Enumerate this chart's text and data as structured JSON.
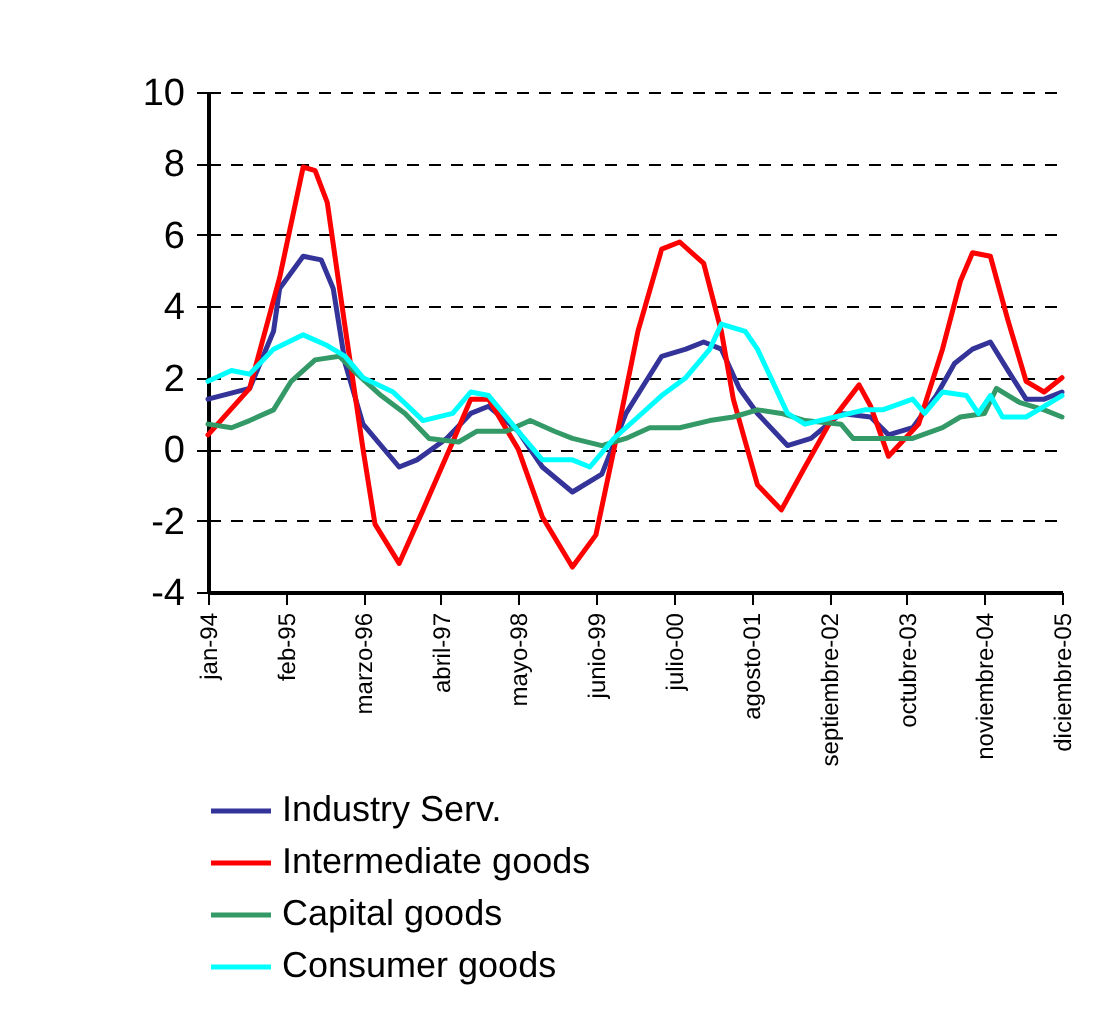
{
  "chart_data": {
    "type": "line",
    "xlim": [
      "1994-01",
      "2005-12"
    ],
    "ylim": [
      -4,
      10
    ],
    "yticks": [
      -4,
      -2,
      0,
      2,
      4,
      6,
      8,
      10
    ],
    "xticks": [
      {
        "value": "1994-01",
        "label": "jan-94"
      },
      {
        "value": "1995-02",
        "label": "feb-95"
      },
      {
        "value": "1996-03",
        "label": "marzo-96"
      },
      {
        "value": "1997-04",
        "label": "abril-97"
      },
      {
        "value": "1998-05",
        "label": "mayo-98"
      },
      {
        "value": "1999-06",
        "label": "junio-99"
      },
      {
        "value": "2000-07",
        "label": "julio-00"
      },
      {
        "value": "2001-08",
        "label": "agosto-01"
      },
      {
        "value": "2002-09",
        "label": "septiembre-02"
      },
      {
        "value": "2003-10",
        "label": "octubre-03"
      },
      {
        "value": "2004-11",
        "label": "noviembre-04"
      },
      {
        "value": "2005-12",
        "label": "diciembre-05"
      }
    ],
    "grid": "y",
    "legend": "bottom",
    "line_style": "solid",
    "marker": "none",
    "series": [
      {
        "name": "Industry Serv.",
        "color": "#333399",
        "x": [
          "1994-01",
          "1994-08",
          "1994-12",
          "1995-01",
          "1995-05",
          "1995-08",
          "1995-10",
          "1995-12",
          "1996-03",
          "1996-09",
          "1996-12",
          "1997-05",
          "1997-09",
          "1997-12",
          "1998-05",
          "1998-09",
          "1999-02",
          "1999-07",
          "1999-11",
          "2000-05",
          "2000-09",
          "2000-12",
          "2001-03",
          "2001-06",
          "2001-09",
          "2002-02",
          "2002-06",
          "2002-11",
          "2003-04",
          "2003-07",
          "2003-11",
          "2004-03",
          "2004-06",
          "2004-09",
          "2004-12",
          "2005-03",
          "2005-06",
          "2005-09",
          "2005-12"
        ],
        "values": [
          1.4,
          1.7,
          3.3,
          4.5,
          5.4,
          5.3,
          4.5,
          2.4,
          0.7,
          -0.5,
          -0.3,
          0.3,
          1.0,
          1.2,
          0.5,
          -0.5,
          -1.2,
          -0.7,
          1.0,
          2.6,
          2.8,
          3.0,
          2.8,
          1.7,
          1.0,
          0.1,
          0.3,
          1.0,
          0.9,
          0.4,
          0.6,
          1.5,
          2.4,
          2.8,
          3.0,
          2.2,
          1.4,
          1.4,
          1.6
        ]
      },
      {
        "name": "Intermediate goods",
        "color": "#ff0000",
        "x": [
          "1994-01",
          "1994-08",
          "1995-01",
          "1995-05",
          "1995-07",
          "1995-09",
          "1995-12",
          "1996-03",
          "1996-05",
          "1996-09",
          "1997-01",
          "1997-06",
          "1997-09",
          "1997-12",
          "1998-05",
          "1998-09",
          "1999-02",
          "1999-06",
          "1999-09",
          "2000-01",
          "2000-05",
          "2000-08",
          "2000-12",
          "2001-03",
          "2001-05",
          "2001-09",
          "2002-01",
          "2002-05",
          "2002-09",
          "2003-02",
          "2003-04",
          "2003-07",
          "2003-12",
          "2004-04",
          "2004-07",
          "2004-09",
          "2004-12",
          "2005-03",
          "2005-06",
          "2005-09",
          "2005-12"
        ],
        "values": [
          0.4,
          1.7,
          4.8,
          7.9,
          7.8,
          6.9,
          3.4,
          0,
          -2.1,
          -3.2,
          -1.7,
          0.2,
          1.4,
          1.4,
          0,
          -1.9,
          -3.3,
          -2.4,
          0,
          3.3,
          5.6,
          5.8,
          5.2,
          3.3,
          1.4,
          -1.0,
          -1.7,
          -0.5,
          0.7,
          1.8,
          1.2,
          -0.2,
          0.7,
          2.8,
          4.7,
          5.5,
          5.4,
          3.6,
          1.9,
          1.6,
          2.0
        ]
      },
      {
        "name": "Capital goods",
        "color": "#339966",
        "x": [
          "1994-01",
          "1994-05",
          "1994-08",
          "1994-12",
          "1995-03",
          "1995-07",
          "1995-11",
          "1996-02",
          "1996-06",
          "1996-10",
          "1997-02",
          "1997-07",
          "1997-10",
          "1998-03",
          "1998-07",
          "1998-11",
          "1999-02",
          "1999-07",
          "1999-11",
          "2000-03",
          "2000-08",
          "2001-01",
          "2001-05",
          "2001-09",
          "2002-01",
          "2002-05",
          "2002-11",
          "2003-01",
          "2003-06",
          "2003-11",
          "2004-04",
          "2004-07",
          "2004-11",
          "2005-01",
          "2005-05",
          "2005-09",
          "2005-12"
        ],
        "values": [
          0.7,
          0.6,
          0.8,
          1.1,
          1.9,
          2.5,
          2.6,
          2.1,
          1.5,
          1.0,
          0.3,
          0.2,
          0.5,
          0.5,
          0.8,
          0.5,
          0.3,
          0.1,
          0.3,
          0.6,
          0.6,
          0.8,
          0.9,
          1.1,
          1.0,
          0.8,
          0.7,
          0.3,
          0.3,
          0.3,
          0.6,
          0.9,
          1.0,
          1.7,
          1.3,
          1.1,
          0.9
        ]
      },
      {
        "name": "Consumer goods",
        "color": "#00ffff",
        "x": [
          "1994-01",
          "1994-05",
          "1994-08",
          "1994-12",
          "1995-05",
          "1995-09",
          "1995-12",
          "1996-03",
          "1996-08",
          "1997-01",
          "1997-06",
          "1997-09",
          "1997-12",
          "1998-05",
          "1998-09",
          "1999-02",
          "1999-05",
          "1999-09",
          "2000-01",
          "2000-05",
          "2000-09",
          "2001-01",
          "2001-03",
          "2001-07",
          "2001-09",
          "2002-02",
          "2002-05",
          "2002-10",
          "2003-03",
          "2003-06",
          "2003-11",
          "2004-01",
          "2004-04",
          "2004-08",
          "2004-10",
          "2004-12",
          "2005-02",
          "2005-06",
          "2005-09",
          "2005-12"
        ],
        "values": [
          1.9,
          2.2,
          2.1,
          2.8,
          3.2,
          2.9,
          2.6,
          2.0,
          1.6,
          0.8,
          1.0,
          1.6,
          1.5,
          0.5,
          -0.3,
          -0.3,
          -0.5,
          0.3,
          0.9,
          1.5,
          2.0,
          2.8,
          3.5,
          3.3,
          2.8,
          1.0,
          0.7,
          0.9,
          1.1,
          1.1,
          1.4,
          1.0,
          1.6,
          1.5,
          1.0,
          1.5,
          0.9,
          0.9,
          1.2,
          1.5
        ]
      }
    ]
  }
}
